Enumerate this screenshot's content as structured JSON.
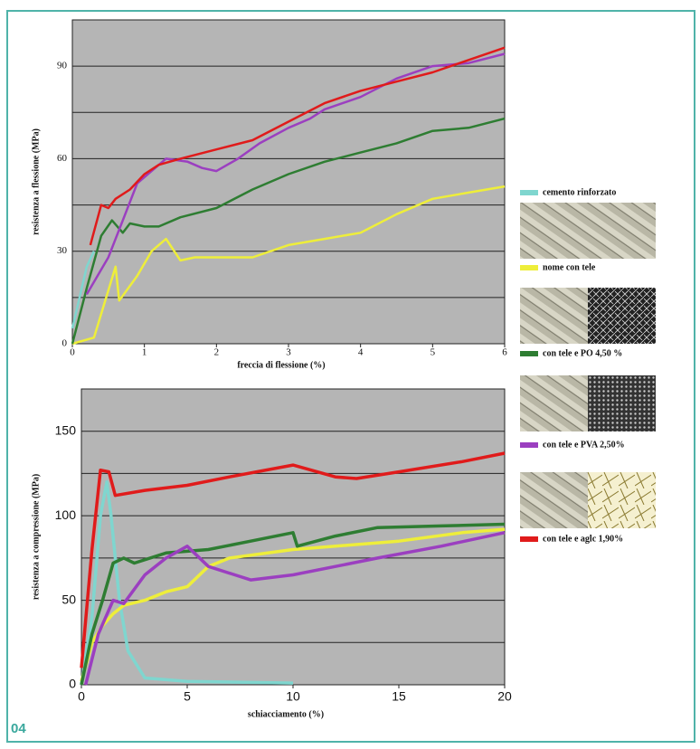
{
  "chart_data": [
    {
      "type": "line",
      "ylabel": "resistenza a flessione (MPa)",
      "xlabel": "freccia di flessione (%)",
      "xlim": [
        0,
        6
      ],
      "xticks": [
        0,
        1,
        2,
        3,
        4,
        5,
        6
      ],
      "ylim": [
        0,
        105
      ],
      "yticks": [
        0,
        30,
        60,
        90
      ],
      "yminor": [
        15,
        45,
        75
      ],
      "grid": true,
      "series": [
        {
          "name": "cemento rinforzato",
          "color": "#7fd6cf",
          "x": [
            0,
            0.1,
            0.2,
            0.3
          ],
          "values": [
            5,
            15,
            25,
            30
          ]
        },
        {
          "name": "nome con tele",
          "color": "#eeee3a",
          "x": [
            0,
            0.3,
            0.6,
            0.65,
            0.9,
            1.1,
            1.3,
            1.5,
            1.7,
            2,
            2.5,
            3,
            3.5,
            4,
            4.5,
            5,
            5.5,
            6
          ],
          "values": [
            0,
            2,
            25,
            14,
            22,
            30,
            34,
            27,
            28,
            28,
            28,
            32,
            34,
            36,
            42,
            47,
            49,
            51
          ]
        },
        {
          "name": "con tele e PO 4,50 %",
          "color": "#2e7d32",
          "x": [
            0,
            0.2,
            0.4,
            0.55,
            0.7,
            0.8,
            1,
            1.2,
            1.5,
            2,
            2.5,
            3,
            3.5,
            4,
            4.5,
            5,
            5.5,
            6
          ],
          "values": [
            0,
            18,
            35,
            40,
            36,
            39,
            38,
            38,
            41,
            44,
            50,
            55,
            59,
            62,
            65,
            69,
            70,
            73
          ]
        },
        {
          "name": "con tele e PVA 2,50%",
          "color": "#9b3fc0",
          "x": [
            0.2,
            0.5,
            0.7,
            0.9,
            1.1,
            1.3,
            1.6,
            1.8,
            2,
            2.3,
            2.6,
            3,
            3.3,
            3.5,
            4,
            4.5,
            5,
            5.5,
            6
          ],
          "values": [
            16,
            28,
            40,
            52,
            56,
            60,
            59,
            57,
            56,
            60,
            65,
            70,
            73,
            76,
            80,
            86,
            90,
            91,
            94
          ]
        },
        {
          "name": "con tele e aglc 1,90%",
          "color": "#e01b1b",
          "x": [
            0.25,
            0.4,
            0.5,
            0.6,
            0.8,
            1,
            1.2,
            1.5,
            2,
            2.5,
            3,
            3.5,
            4,
            4.5,
            5,
            5.5,
            6
          ],
          "values": [
            32,
            45,
            44,
            47,
            50,
            55,
            58,
            60,
            63,
            66,
            72,
            78,
            82,
            85,
            88,
            92,
            96
          ]
        }
      ]
    },
    {
      "type": "line",
      "ylabel": "resistenza a compressione (MPa)",
      "xlabel": "schiacciamento (%)",
      "xlim": [
        0,
        20
      ],
      "xticks": [
        0,
        5,
        10,
        15,
        20
      ],
      "ylim": [
        0,
        175
      ],
      "yticks": [
        0,
        50,
        100,
        150
      ],
      "yminor": [
        25,
        75,
        125
      ],
      "grid": true,
      "series": [
        {
          "color": "#7fd6cf",
          "x": [
            0,
            0.5,
            0.9,
            1.2,
            1.4,
            1.8,
            2.2,
            3,
            5,
            10
          ],
          "values": [
            0,
            40,
            100,
            120,
            100,
            50,
            20,
            4,
            2,
            1
          ]
        },
        {
          "color": "#eeee3a",
          "x": [
            0,
            0.5,
            1,
            1.5,
            2,
            3,
            4,
            5,
            6,
            7,
            10,
            15,
            18,
            20
          ],
          "values": [
            2,
            25,
            35,
            42,
            47,
            50,
            55,
            58,
            70,
            75,
            80,
            85,
            90,
            92
          ]
        },
        {
          "color": "#2e7d32",
          "x": [
            0,
            0.5,
            1,
            1.5,
            2,
            2.5,
            4,
            6,
            8,
            10,
            10.2,
            12,
            14,
            17,
            20
          ],
          "values": [
            0,
            30,
            50,
            72,
            75,
            72,
            78,
            80,
            85,
            90,
            82,
            88,
            93,
            94,
            95
          ]
        },
        {
          "color": "#9b3fc0",
          "x": [
            0.2,
            0.8,
            1.5,
            2,
            3,
            4,
            5,
            6,
            8,
            10,
            14,
            17,
            20
          ],
          "values": [
            0,
            30,
            50,
            48,
            65,
            75,
            82,
            70,
            62,
            65,
            75,
            82,
            90
          ]
        },
        {
          "color": "#e01b1b",
          "x": [
            0,
            0.5,
            0.9,
            1.3,
            1.6,
            3,
            5,
            7,
            10,
            12,
            13,
            15,
            18,
            20
          ],
          "values": [
            10,
            80,
            127,
            126,
            112,
            115,
            118,
            123,
            130,
            123,
            122,
            126,
            132,
            137
          ]
        }
      ]
    }
  ],
  "figure_number": "04"
}
